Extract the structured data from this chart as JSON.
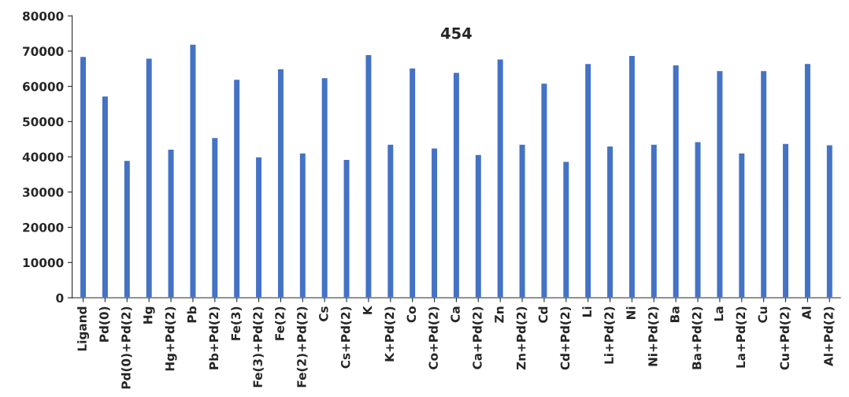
{
  "chart_data": {
    "type": "bar",
    "title": "454",
    "categories": [
      "Ligand",
      "Pd(0)",
      "Pd(0)+Pd(2)",
      "Hg",
      "Hg+Pd(2)",
      "Pb",
      "Pb+Pd(2)",
      "Fe(3)",
      "Fe(3)+Pd(2)",
      "Fe(2)",
      "Fe(2)+Pd(2)",
      "Cs",
      "Cs+Pd(2)",
      "K",
      "K+Pd(2)",
      "Co",
      "Co+Pd(2)",
      "Ca",
      "Ca+Pd(2)",
      "Zn",
      "Zn+Pd(2)",
      "Cd",
      "Cd+Pd(2)",
      "Li",
      "Li+Pd(2)",
      "Ni",
      "Ni+Pd(2)",
      "Ba",
      "Ba+Pd(2)",
      "La",
      "La+Pd(2)",
      "Cu",
      "Cu+Pd(2)",
      "Al",
      "Al+Pd(2)"
    ],
    "values": [
      68500,
      57300,
      39000,
      68000,
      42200,
      72000,
      45500,
      62000,
      40000,
      65000,
      41100,
      62500,
      39300,
      69000,
      43600,
      65200,
      42500,
      64000,
      40700,
      67800,
      43600,
      60900,
      38700,
      66500,
      43100,
      68800,
      43600,
      66100,
      44300,
      64500,
      41100,
      64500,
      43800,
      66500,
      43400
    ],
    "color": "#4472c4",
    "ylim": [
      0,
      80000
    ],
    "yticks": [
      0,
      10000,
      20000,
      30000,
      40000,
      50000,
      60000,
      70000,
      80000
    ],
    "grid": false
  }
}
